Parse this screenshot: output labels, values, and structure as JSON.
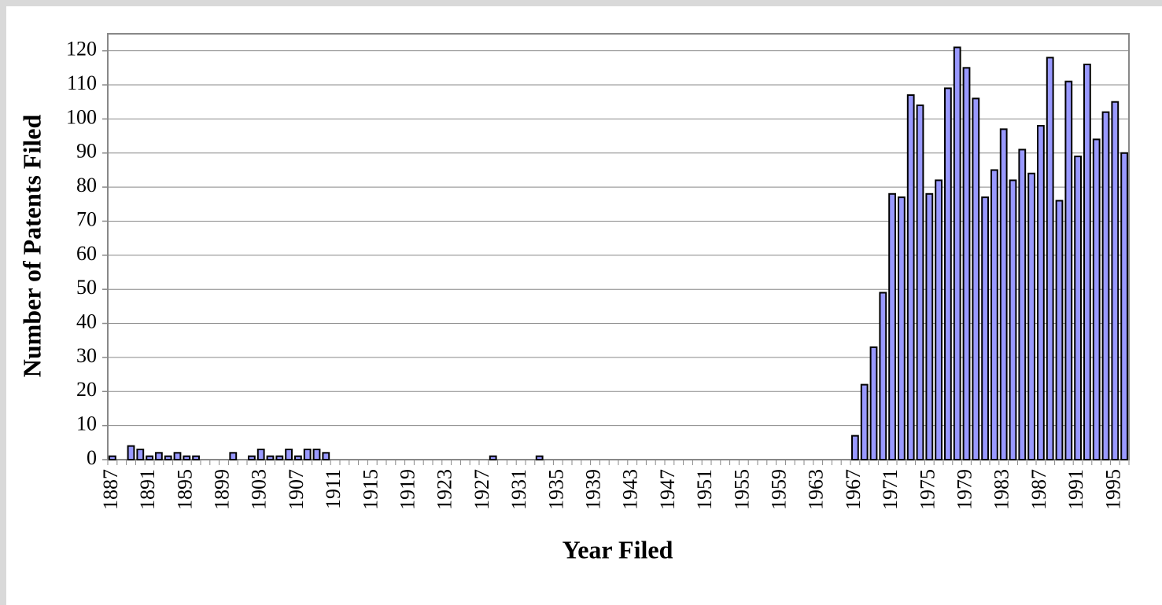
{
  "chart_data": {
    "type": "bar",
    "x_label": "Year Filed",
    "y_label": "Number of Patents Filed",
    "categories": [
      "1887",
      null,
      null,
      null,
      "1891",
      null,
      null,
      null,
      "1895",
      null,
      null,
      null,
      "1899",
      null,
      null,
      null,
      "1903",
      null,
      null,
      null,
      "1907",
      null,
      null,
      null,
      "1911",
      null,
      null,
      null,
      "1915",
      null,
      null,
      null,
      "1919",
      null,
      null,
      null,
      "1923",
      null,
      null,
      null,
      "1927",
      null,
      null,
      null,
      "1931",
      null,
      null,
      null,
      "1935",
      null,
      null,
      null,
      "1939",
      null,
      null,
      null,
      "1943",
      null,
      null,
      null,
      "1947",
      null,
      null,
      null,
      "1951",
      null,
      null,
      null,
      "1955",
      null,
      null,
      null,
      "1959",
      null,
      null,
      null,
      "1963",
      null,
      null,
      null,
      "1967",
      null,
      null,
      null,
      "1971",
      null,
      null,
      null,
      "1975",
      null,
      null,
      null,
      "1979",
      null,
      null,
      null,
      "1983",
      null,
      null,
      null,
      "1987",
      null,
      null,
      null,
      "1991",
      null,
      null,
      null,
      "1995",
      null
    ],
    "values": [
      1,
      0,
      4,
      3,
      1,
      2,
      1,
      2,
      1,
      1,
      0,
      0,
      0,
      2,
      0,
      1,
      3,
      1,
      1,
      3,
      1,
      3,
      3,
      2,
      0,
      0,
      0,
      0,
      0,
      0,
      0,
      0,
      0,
      0,
      0,
      0,
      0,
      0,
      0,
      0,
      0,
      1,
      0,
      0,
      0,
      0,
      1,
      0,
      0,
      0,
      0,
      0,
      0,
      0,
      0,
      0,
      0,
      0,
      0,
      0,
      0,
      0,
      0,
      0,
      0,
      0,
      0,
      0,
      0,
      0,
      0,
      0,
      0,
      0,
      0,
      0,
      0,
      0,
      0,
      0,
      7,
      22,
      33,
      49,
      78,
      77,
      107,
      104,
      78,
      82,
      109,
      121,
      115,
      106,
      77,
      85,
      97,
      82,
      91,
      84,
      98,
      118,
      76,
      111,
      89,
      116,
      94,
      102,
      105,
      90
    ],
    "color": "#9999ff",
    "ylim": [
      0,
      125
    ],
    "yticks": [
      0,
      10,
      20,
      30,
      40,
      50,
      60,
      70,
      80,
      90,
      100,
      110,
      120
    ],
    "grid": true
  }
}
